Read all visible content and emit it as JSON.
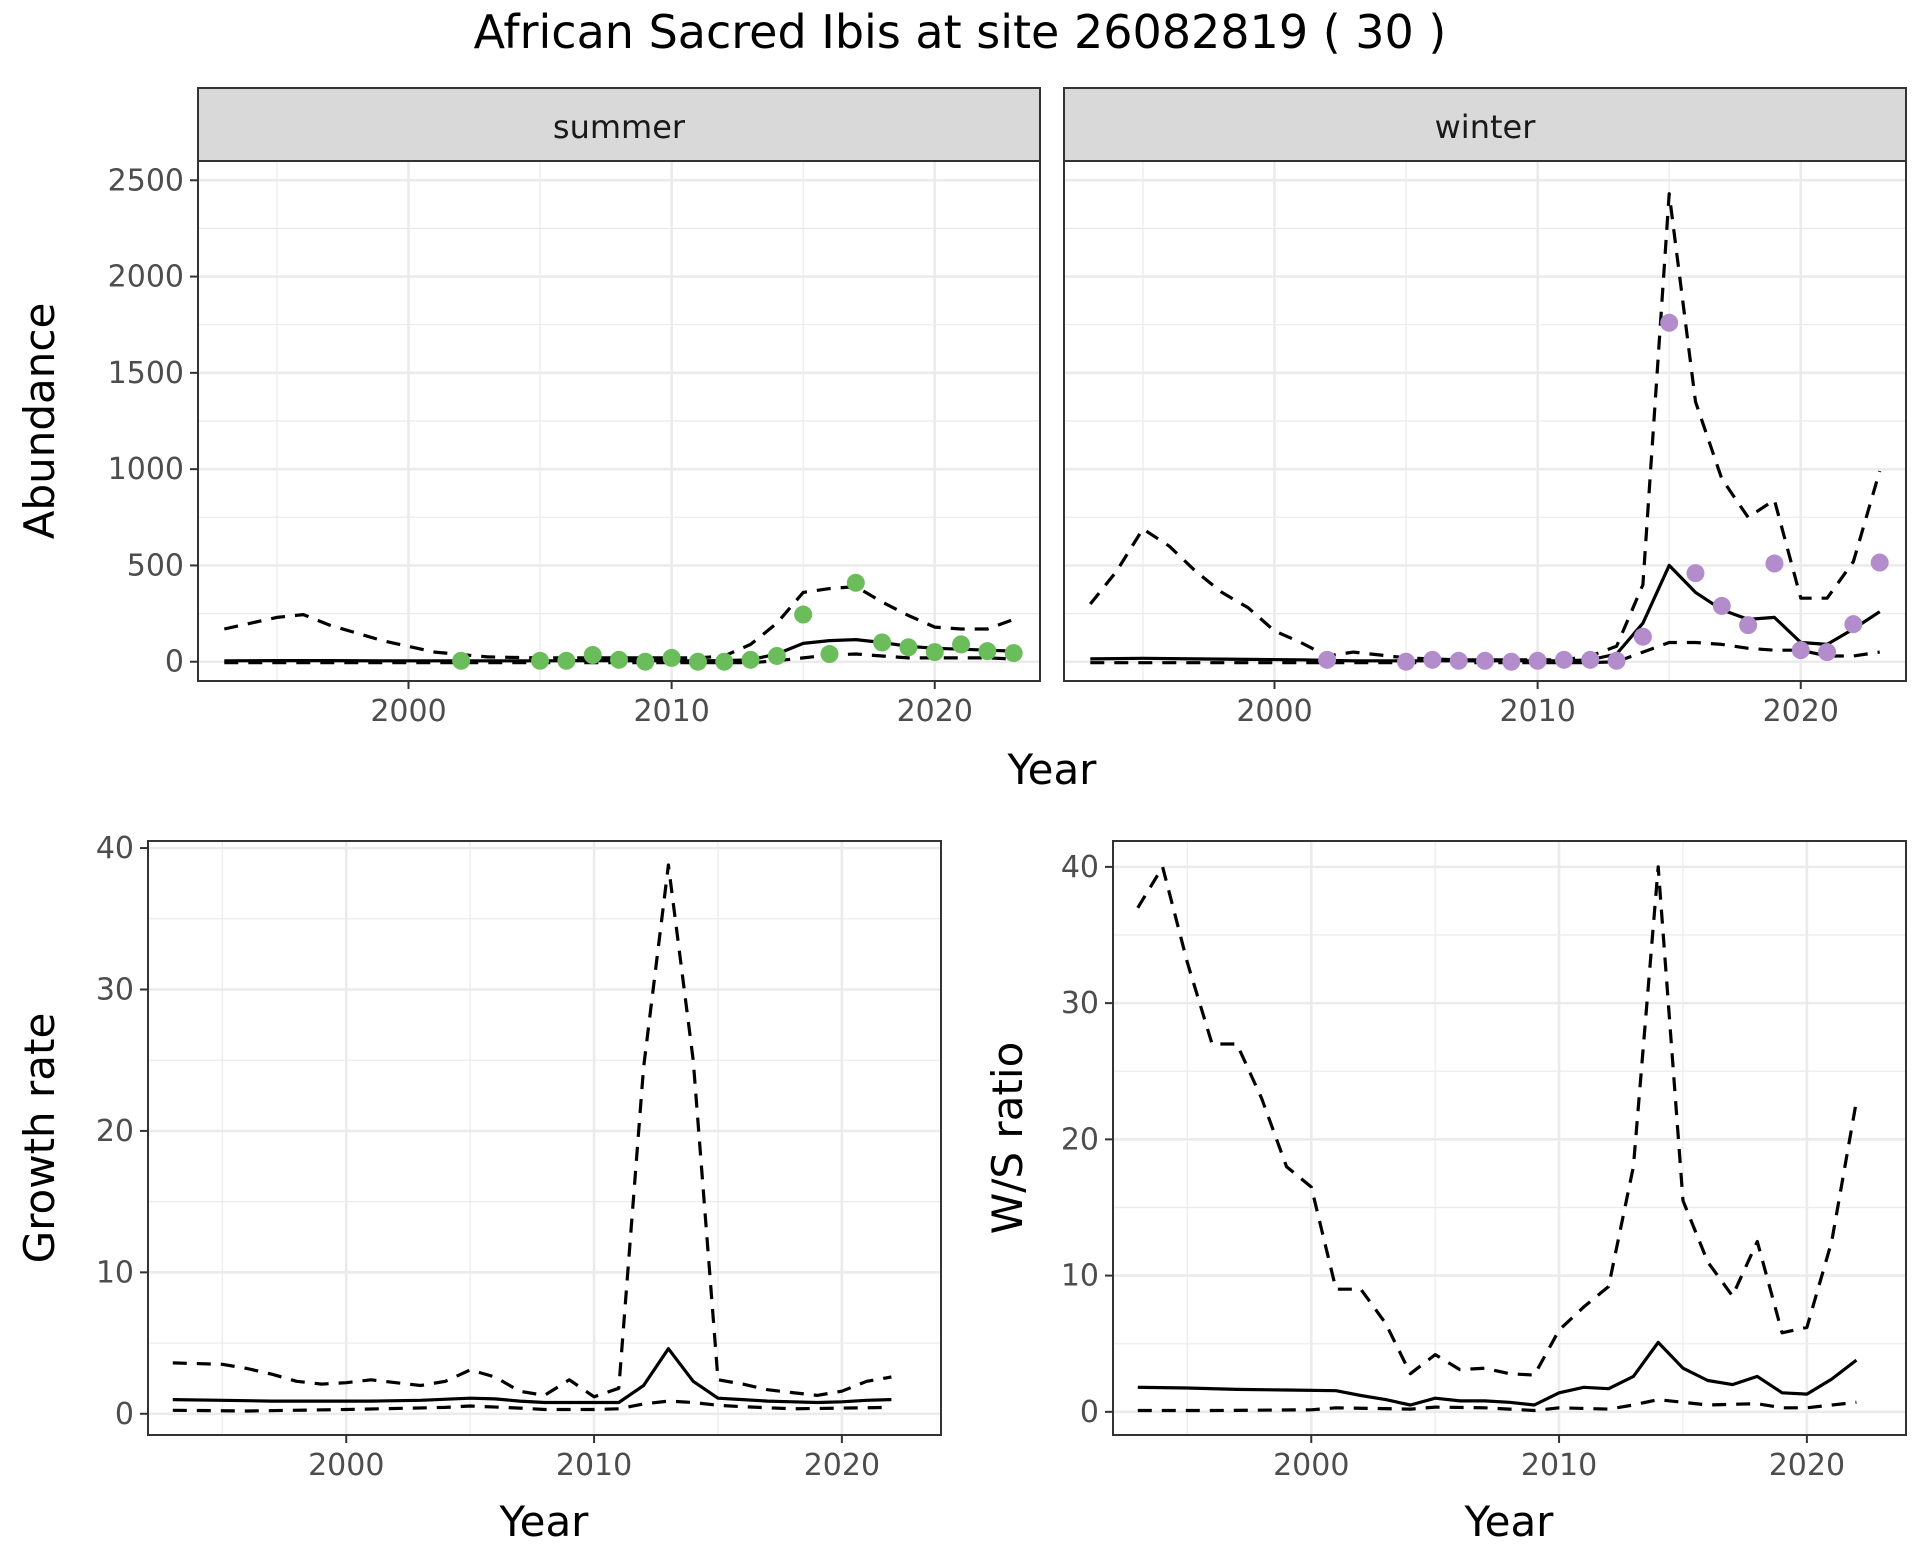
{
  "title": "African Sacred Ibis at site 26082819 ( 30 )",
  "colors": {
    "summer_points": "#6bbd5b",
    "winter_points": "#b38ccc",
    "line": "#000000",
    "grid_major": "#ebebeb",
    "strip_fill": "#d9d9d9"
  },
  "chart_data": [
    {
      "type": "line",
      "facet": "summer",
      "xlabel": "Year",
      "ylabel": "Abundance",
      "xlim": [
        1992,
        2024
      ],
      "ylim": [
        -100,
        2600
      ],
      "x_ticks": [
        2000,
        2010,
        2020
      ],
      "y_ticks": [
        0,
        500,
        1000,
        1500,
        2000,
        2500
      ],
      "grid": true,
      "series": [
        {
          "style": "solid",
          "x": [
            1993,
            1995,
            1997,
            1999,
            2001,
            2003,
            2005,
            2007,
            2009,
            2011,
            2012,
            2013,
            2014,
            2015,
            2016,
            2017,
            2018,
            2019,
            2020,
            2021,
            2022,
            2023
          ],
          "y": [
            5,
            6,
            6,
            5,
            5,
            5,
            5,
            6,
            5,
            5,
            6,
            10,
            40,
            95,
            110,
            115,
            100,
            80,
            70,
            65,
            60,
            55
          ]
        },
        {
          "style": "dashed",
          "x": [
            1993,
            1995,
            1996,
            1997,
            1999,
            2001,
            2003,
            2005,
            2007,
            2009,
            2011,
            2012,
            2013,
            2014,
            2015,
            2016,
            2017,
            2018,
            2019,
            2020,
            2021,
            2022,
            2023
          ],
          "y": [
            170,
            230,
            245,
            190,
            110,
            50,
            25,
            20,
            20,
            20,
            20,
            30,
            90,
            200,
            360,
            380,
            390,
            310,
            240,
            180,
            170,
            170,
            220
          ]
        },
        {
          "style": "dashed",
          "x": [
            1993,
            2000,
            2005,
            2010,
            2013,
            2014,
            2015,
            2016,
            2017,
            2018,
            2019,
            2020,
            2021,
            2022,
            2023
          ],
          "y": [
            -5,
            -5,
            -5,
            -5,
            -5,
            5,
            20,
            35,
            40,
            30,
            20,
            20,
            20,
            20,
            15
          ]
        }
      ],
      "points": {
        "x": [
          2002,
          2005,
          2006,
          2007,
          2008,
          2009,
          2010,
          2011,
          2012,
          2013,
          2014,
          2015,
          2016,
          2017,
          2018,
          2019,
          2020,
          2021,
          2022,
          2023
        ],
        "y": [
          5,
          5,
          5,
          35,
          10,
          0,
          20,
          0,
          0,
          10,
          30,
          245,
          40,
          410,
          100,
          75,
          50,
          90,
          55,
          45
        ]
      }
    },
    {
      "type": "line",
      "facet": "winter",
      "xlabel": "Year",
      "ylabel": "Abundance",
      "xlim": [
        1992,
        2024
      ],
      "ylim": [
        -100,
        2600
      ],
      "x_ticks": [
        2000,
        2010,
        2020
      ],
      "y_ticks": [
        0,
        500,
        1000,
        1500,
        2000,
        2500
      ],
      "grid": true,
      "series": [
        {
          "style": "solid",
          "x": [
            1993,
            1995,
            1997,
            1999,
            2001,
            2003,
            2005,
            2007,
            2009,
            2011,
            2012,
            2013,
            2014,
            2015,
            2016,
            2017,
            2018,
            2019,
            2020,
            2021,
            2022,
            2023
          ],
          "y": [
            15,
            18,
            15,
            12,
            10,
            5,
            5,
            5,
            5,
            5,
            10,
            40,
            200,
            500,
            360,
            270,
            220,
            230,
            100,
            90,
            170,
            260
          ]
        },
        {
          "style": "dashed",
          "x": [
            1993,
            1994,
            1995,
            1996,
            1997,
            1998,
            1999,
            2000,
            2001,
            2002,
            2003,
            2005,
            2007,
            2009,
            2011,
            2012,
            2013,
            2014,
            2015,
            2016,
            2017,
            2018,
            2019,
            2020,
            2021,
            2022,
            2023
          ],
          "y": [
            300,
            470,
            690,
            600,
            470,
            360,
            280,
            160,
            100,
            30,
            50,
            20,
            10,
            10,
            10,
            30,
            80,
            400,
            2430,
            1350,
            950,
            750,
            840,
            330,
            330,
            520,
            990
          ]
        },
        {
          "style": "dashed",
          "x": [
            1993,
            2000,
            2005,
            2010,
            2012,
            2013,
            2014,
            2015,
            2016,
            2017,
            2018,
            2019,
            2020,
            2021,
            2022,
            2023
          ],
          "y": [
            -5,
            -5,
            -5,
            -5,
            -5,
            0,
            50,
            100,
            100,
            90,
            70,
            60,
            60,
            30,
            30,
            50
          ]
        }
      ],
      "points": {
        "x": [
          2002,
          2005,
          2006,
          2007,
          2008,
          2009,
          2010,
          2011,
          2012,
          2013,
          2014,
          2015,
          2016,
          2017,
          2018,
          2019,
          2020,
          2021,
          2022,
          2023
        ],
        "y": [
          10,
          0,
          10,
          5,
          5,
          0,
          5,
          10,
          10,
          5,
          130,
          1760,
          460,
          290,
          190,
          510,
          60,
          50,
          195,
          515
        ]
      }
    },
    {
      "type": "line",
      "xlabel": "Year",
      "ylabel": "Growth rate",
      "xlim": [
        1992,
        2024
      ],
      "ylim": [
        -1.5,
        40.5
      ],
      "x_ticks": [
        2000,
        2010,
        2020
      ],
      "y_ticks": [
        0,
        10,
        20,
        30,
        40
      ],
      "grid": true,
      "series": [
        {
          "style": "solid",
          "x": [
            1993,
            1995,
            1997,
            1999,
            2001,
            2003,
            2005,
            2006,
            2007,
            2008,
            2009,
            2010,
            2011,
            2012,
            2013,
            2014,
            2015,
            2016,
            2017,
            2018,
            2019,
            2020,
            2021,
            2022
          ],
          "y": [
            1.0,
            0.95,
            0.9,
            0.9,
            0.9,
            0.95,
            1.1,
            1.05,
            0.9,
            0.8,
            0.8,
            0.8,
            0.8,
            2.0,
            4.6,
            2.3,
            1.1,
            1.0,
            0.9,
            0.85,
            0.8,
            0.85,
            0.95,
            1.0
          ]
        },
        {
          "style": "dashed",
          "x": [
            1993,
            1995,
            1996,
            1997,
            1998,
            1999,
            2000,
            2001,
            2002,
            2003,
            2004,
            2005,
            2006,
            2007,
            2008,
            2009,
            2010,
            2011,
            2012,
            2013,
            2014,
            2015,
            2016,
            2017,
            2018,
            2019,
            2020,
            2021,
            2022
          ],
          "y": [
            3.6,
            3.5,
            3.2,
            2.8,
            2.3,
            2.1,
            2.2,
            2.4,
            2.2,
            2.0,
            2.3,
            3.1,
            2.6,
            1.6,
            1.3,
            2.4,
            1.2,
            1.8,
            24.5,
            38.8,
            25.0,
            2.4,
            2.1,
            1.7,
            1.5,
            1.3,
            1.6,
            2.3,
            2.6
          ]
        },
        {
          "style": "dashed",
          "x": [
            1993,
            1996,
            2000,
            2004,
            2005,
            2007,
            2008,
            2010,
            2011,
            2012,
            2013,
            2014,
            2015,
            2016,
            2018,
            2020,
            2022
          ],
          "y": [
            0.25,
            0.2,
            0.3,
            0.45,
            0.55,
            0.4,
            0.3,
            0.3,
            0.35,
            0.7,
            0.9,
            0.8,
            0.6,
            0.5,
            0.35,
            0.4,
            0.45
          ]
        }
      ]
    },
    {
      "type": "line",
      "xlabel": "Year",
      "ylabel": "W/S ratio",
      "xlim": [
        1992,
        2024
      ],
      "ylim": [
        -1.7,
        41.9
      ],
      "x_ticks": [
        2000,
        2010,
        2020
      ],
      "y_ticks": [
        0,
        10,
        20,
        30,
        40
      ],
      "grid": true,
      "series": [
        {
          "style": "solid",
          "x": [
            1993,
            1995,
            1997,
            1999,
            2001,
            2002,
            2003,
            2004,
            2005,
            2006,
            2007,
            2008,
            2009,
            2010,
            2011,
            2012,
            2013,
            2014,
            2015,
            2016,
            2017,
            2018,
            2019,
            2020,
            2021,
            2022
          ],
          "y": [
            1.8,
            1.75,
            1.65,
            1.6,
            1.55,
            1.2,
            0.9,
            0.5,
            1.0,
            0.8,
            0.8,
            0.7,
            0.5,
            1.4,
            1.8,
            1.7,
            2.6,
            5.1,
            3.2,
            2.3,
            2.0,
            2.6,
            1.4,
            1.3,
            2.4,
            3.8
          ]
        },
        {
          "style": "dashed",
          "x": [
            1993,
            1994,
            1995,
            1996,
            1997,
            1998,
            1999,
            2000,
            2001,
            2002,
            2003,
            2004,
            2005,
            2006,
            2007,
            2008,
            2009,
            2010,
            2011,
            2012,
            2013,
            2014,
            2015,
            2016,
            2017,
            2018,
            2019,
            2020,
            2021,
            2022
          ],
          "y": [
            37.0,
            40.0,
            33.0,
            27.0,
            27.0,
            23.0,
            18.0,
            16.5,
            9.0,
            9.0,
            6.5,
            2.8,
            4.2,
            3.1,
            3.2,
            2.8,
            2.7,
            6.0,
            7.7,
            9.2,
            18.0,
            40.0,
            15.5,
            11.0,
            8.5,
            12.5,
            5.8,
            6.2,
            12.5,
            22.8
          ]
        },
        {
          "style": "dashed",
          "x": [
            1993,
            1996,
            2000,
            2001,
            2004,
            2005,
            2007,
            2009,
            2010,
            2012,
            2013,
            2014,
            2016,
            2017,
            2018,
            2019,
            2020,
            2022
          ],
          "y": [
            0.1,
            0.1,
            0.15,
            0.3,
            0.2,
            0.35,
            0.3,
            0.1,
            0.3,
            0.2,
            0.5,
            0.9,
            0.5,
            0.55,
            0.6,
            0.3,
            0.3,
            0.7
          ]
        }
      ]
    }
  ]
}
